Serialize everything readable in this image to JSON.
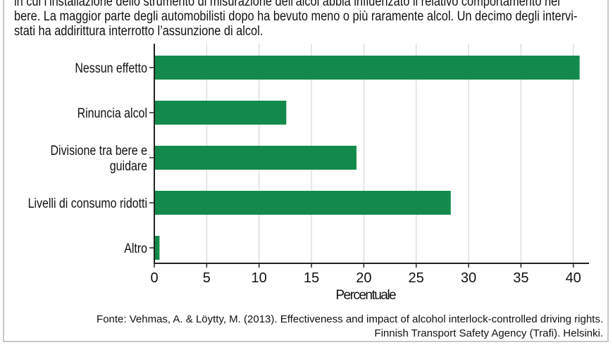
{
  "intro": {
    "line1": "in cui l’installazione dello strumento di misurazione dell’alcol abbia influenzato il relativo comportamento nel",
    "line2": "bere. La maggior parte degli automobilisti dopo ha bevuto meno o più raramente alcol. Un decimo degli intervi-",
    "line3": "stati ha addirittura interrotto l’assunzione di alcol."
  },
  "chart_data": {
    "type": "bar",
    "orientation": "horizontal",
    "categories": [
      [
        "Nessun effetto"
      ],
      [
        "Rinuncia alcol"
      ],
      [
        "Divisione tra bere e",
        "guidare"
      ],
      [
        "Livelli di consumo ridotti"
      ],
      [
        "Altro"
      ]
    ],
    "values": [
      40.6,
      12.6,
      19.3,
      28.3,
      0.5
    ],
    "xlabel": "Percentuale",
    "xlim": [
      0,
      41.5
    ],
    "ticks": [
      0,
      5,
      10,
      15,
      20,
      25,
      30,
      35,
      40
    ],
    "grid": true,
    "bar_color": "#138a4b"
  },
  "source": {
    "line1": "Fonte: Vehmas, A. & Löytty, M. (2013). Effectiveness and impact of alcohol interlock-controlled driving rights.",
    "line2": "Finnish Transport Safety Agency (Trafi). Helsinki."
  }
}
